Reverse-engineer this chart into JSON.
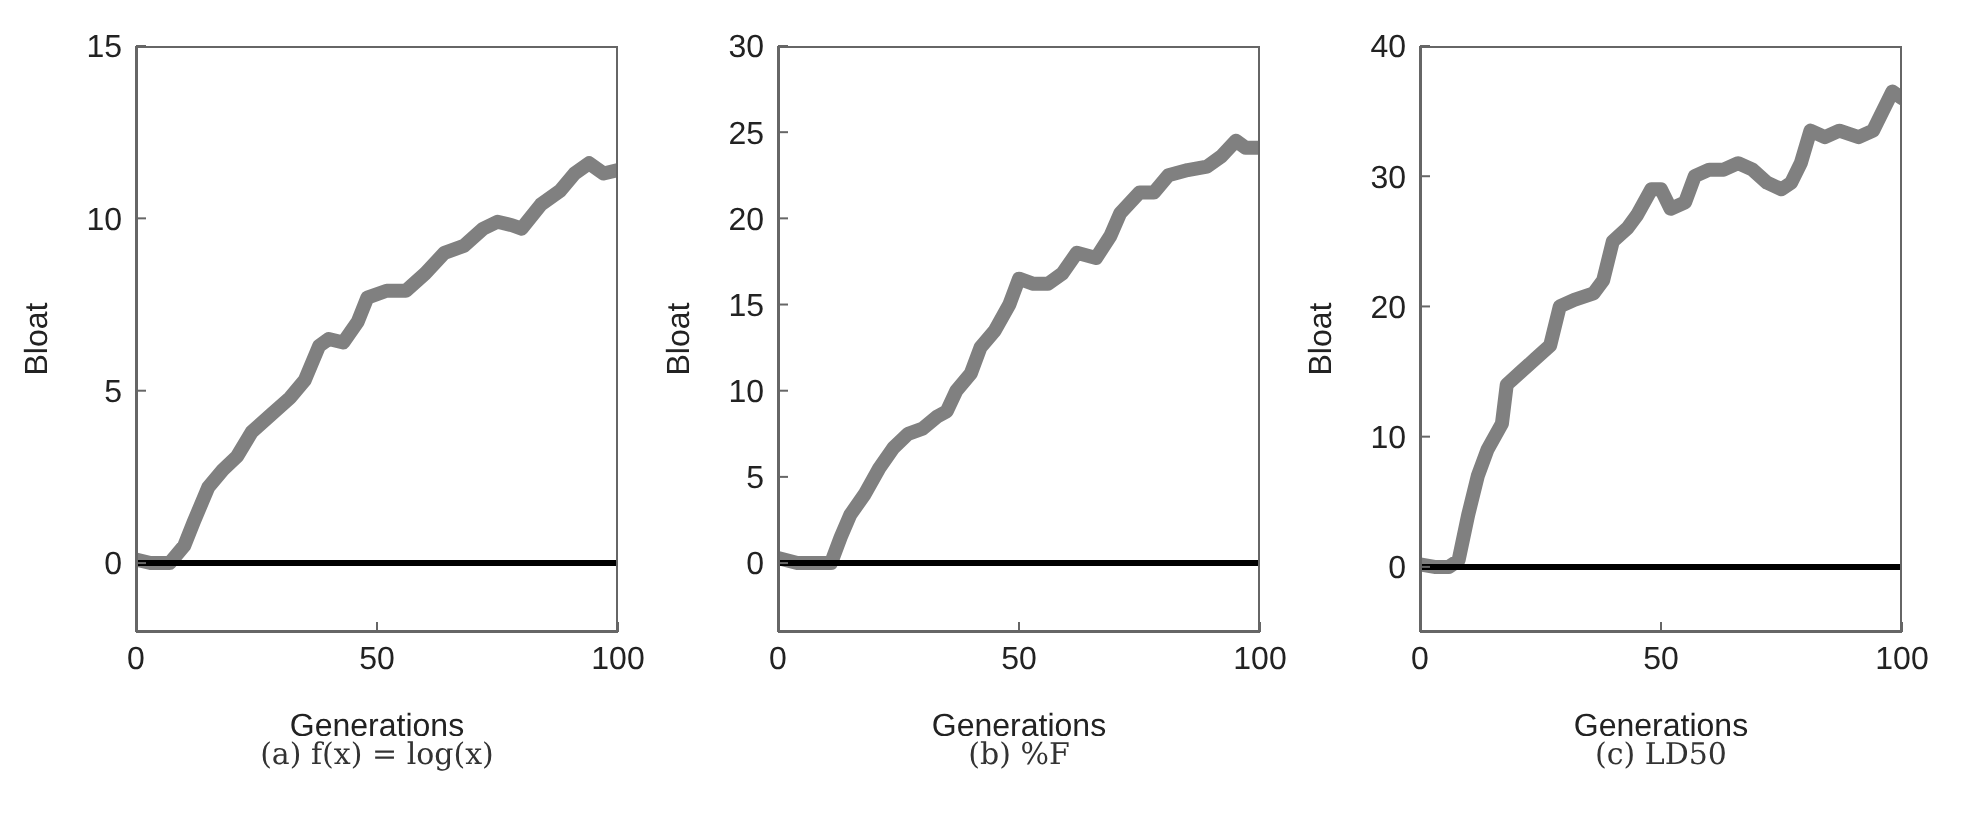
{
  "chart_data": [
    {
      "type": "line",
      "title": "(a) f(x) = log(x)",
      "xlabel": "Generations",
      "ylabel": "Bloat",
      "xlim": [
        0,
        100
      ],
      "xticks": [
        0,
        50,
        100
      ],
      "ylim": [
        -2,
        15
      ],
      "yticks": [
        0,
        5,
        10,
        15
      ],
      "marker": "none",
      "line_style": "solid",
      "series": [
        {
          "color": "#808080",
          "x": [
            0,
            3,
            7,
            10,
            12,
            15,
            18,
            21,
            24,
            28,
            32,
            35,
            38,
            40,
            43,
            46,
            48,
            52,
            56,
            60,
            64,
            68,
            72,
            75,
            78,
            80,
            84,
            88,
            91,
            94,
            97,
            100
          ],
          "values": [
            0.1,
            0,
            0,
            0.5,
            1.2,
            2.2,
            2.7,
            3.1,
            3.8,
            4.3,
            4.8,
            5.3,
            6.3,
            6.5,
            6.4,
            7.0,
            7.7,
            7.9,
            7.9,
            8.4,
            9.0,
            9.2,
            9.7,
            9.9,
            9.8,
            9.7,
            10.4,
            10.8,
            11.3,
            11.6,
            11.3,
            11.4
          ]
        },
        {
          "color": "#000000",
          "x": [
            0,
            100
          ],
          "values": [
            0,
            0
          ]
        }
      ]
    },
    {
      "type": "line",
      "title": "(b) %F",
      "xlabel": "Generations",
      "ylabel": "Bloat",
      "xlim": [
        0,
        100
      ],
      "xticks": [
        0,
        50,
        100
      ],
      "ylim": [
        -4,
        30
      ],
      "yticks": [
        0,
        5,
        10,
        15,
        20,
        25,
        30
      ],
      "marker": "none",
      "line_style": "solid",
      "series": [
        {
          "color": "#808080",
          "x": [
            0,
            4,
            8,
            11,
            13,
            15,
            18,
            21,
            24,
            27,
            30,
            33,
            35,
            37,
            40,
            42,
            45,
            48,
            50,
            53,
            56,
            59,
            62,
            66,
            69,
            71,
            75,
            78,
            81,
            85,
            89,
            92,
            95,
            97,
            100
          ],
          "values": [
            0.3,
            0,
            0,
            0,
            1.5,
            2.8,
            4,
            5.5,
            6.7,
            7.5,
            7.8,
            8.5,
            8.8,
            10,
            11,
            12.5,
            13.5,
            15,
            16.5,
            16.2,
            16.2,
            16.8,
            18,
            17.7,
            19,
            20.3,
            21.5,
            21.5,
            22.5,
            22.8,
            23,
            23.6,
            24.5,
            24.1,
            24.1
          ]
        },
        {
          "color": "#000000",
          "x": [
            0,
            100
          ],
          "values": [
            0,
            0
          ]
        }
      ]
    },
    {
      "type": "line",
      "title": "(c) LD50",
      "xlabel": "Generations",
      "ylabel": "Bloat",
      "xlim": [
        0,
        100
      ],
      "xticks": [
        0,
        50,
        100
      ],
      "ylim": [
        -5,
        40
      ],
      "yticks": [
        0,
        10,
        20,
        30,
        40
      ],
      "marker": "none",
      "line_style": "solid",
      "series": [
        {
          "color": "#808080",
          "x": [
            0,
            3,
            6,
            8,
            10,
            12,
            14,
            17,
            18,
            21,
            24,
            27,
            29,
            32,
            36,
            38,
            40,
            43,
            45,
            48,
            50,
            52,
            55,
            57,
            60,
            63,
            66,
            69,
            72,
            75,
            77,
            79,
            81,
            84,
            87,
            91,
            94,
            96,
            98,
            100
          ],
          "values": [
            0.2,
            0,
            0,
            0.5,
            4,
            7,
            9,
            11,
            14,
            15,
            16,
            17,
            20,
            20.5,
            21,
            22,
            25,
            26,
            27,
            29,
            29,
            27.5,
            28,
            30,
            30.5,
            30.5,
            31,
            30.5,
            29.5,
            29,
            29.5,
            31,
            33.5,
            33,
            33.5,
            33,
            33.5,
            35,
            36.5,
            36
          ]
        },
        {
          "color": "#000000",
          "x": [
            0,
            100
          ],
          "values": [
            0,
            0
          ]
        }
      ]
    }
  ]
}
